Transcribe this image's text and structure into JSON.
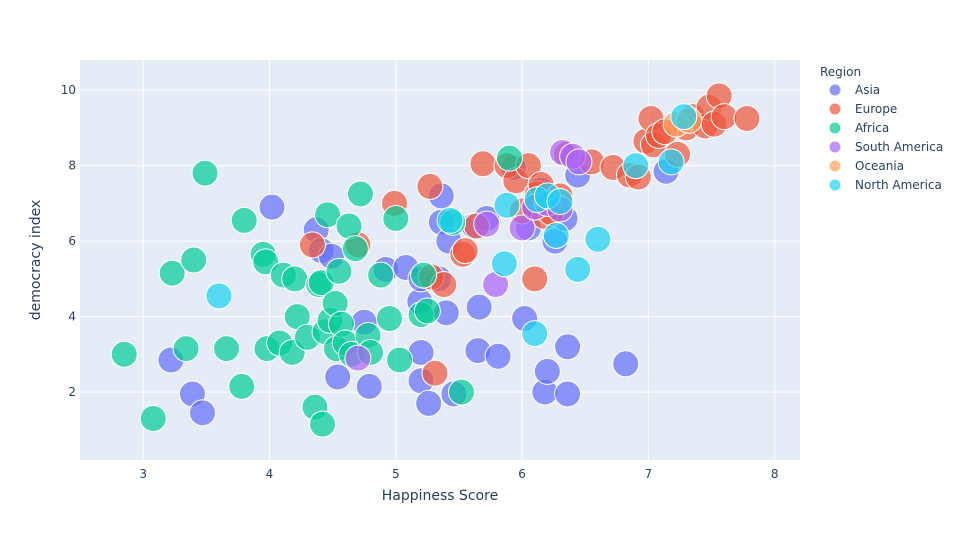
{
  "chart_data": {
    "type": "scatter",
    "title": "",
    "xlabel": "Happiness Score",
    "ylabel": "democracy index",
    "xlim": [
      2.5,
      8.2
    ],
    "ylim": [
      0.2,
      10.8
    ],
    "xticks": [
      3,
      4,
      5,
      6,
      7,
      8
    ],
    "yticks": [
      2,
      4,
      6,
      8,
      10
    ],
    "grid": true,
    "legend": {
      "title": "Region",
      "placement": "right"
    },
    "series": [
      {
        "name": "Asia",
        "color": "#636efa",
        "points": [
          [
            3.22,
            2.85
          ],
          [
            3.39,
            1.95
          ],
          [
            3.47,
            1.45
          ],
          [
            4.02,
            6.9
          ],
          [
            4.37,
            6.3
          ],
          [
            4.41,
            5.75
          ],
          [
            4.49,
            5.6
          ],
          [
            4.54,
            2.4
          ],
          [
            4.79,
            2.15
          ],
          [
            4.92,
            5.25
          ],
          [
            5.08,
            5.3
          ],
          [
            5.19,
            4.4
          ],
          [
            5.2,
            3.05
          ],
          [
            5.2,
            2.3
          ],
          [
            5.26,
            1.7
          ],
          [
            5.34,
            5.0
          ],
          [
            5.36,
            6.5
          ],
          [
            5.36,
            7.2
          ],
          [
            5.4,
            4.1
          ],
          [
            5.42,
            6.0
          ],
          [
            5.46,
            1.95
          ],
          [
            5.62,
            6.4
          ],
          [
            5.65,
            3.1
          ],
          [
            5.66,
            4.25
          ],
          [
            5.72,
            6.6
          ],
          [
            5.81,
            2.95
          ],
          [
            5.93,
            7.95
          ],
          [
            6.02,
            3.95
          ],
          [
            6.05,
            6.35
          ],
          [
            6.1,
            6.9
          ],
          [
            6.15,
            7.35
          ],
          [
            6.18,
            2.0
          ],
          [
            6.2,
            2.55
          ],
          [
            6.26,
            6.0
          ],
          [
            6.34,
            6.6
          ],
          [
            6.36,
            3.2
          ],
          [
            6.36,
            1.95
          ],
          [
            6.44,
            7.75
          ],
          [
            6.82,
            2.75
          ],
          [
            7.14,
            7.85
          ],
          [
            5.2,
            5.0
          ],
          [
            4.75,
            3.85
          ]
        ]
      },
      {
        "name": "Europe",
        "color": "#ef553b",
        "points": [
          [
            4.34,
            5.9
          ],
          [
            4.7,
            5.9
          ],
          [
            4.99,
            7.0
          ],
          [
            5.27,
            7.45
          ],
          [
            5.28,
            5.05
          ],
          [
            5.31,
            2.5
          ],
          [
            5.38,
            4.85
          ],
          [
            5.53,
            5.65
          ],
          [
            5.64,
            6.4
          ],
          [
            5.69,
            8.05
          ],
          [
            5.88,
            8.0
          ],
          [
            5.95,
            7.6
          ],
          [
            6.0,
            6.8
          ],
          [
            6.05,
            8.0
          ],
          [
            6.1,
            5.0
          ],
          [
            6.12,
            7.25
          ],
          [
            6.15,
            7.5
          ],
          [
            6.18,
            6.65
          ],
          [
            6.3,
            7.2
          ],
          [
            6.35,
            8.3
          ],
          [
            6.55,
            8.1
          ],
          [
            6.72,
            7.95
          ],
          [
            6.85,
            7.75
          ],
          [
            6.92,
            7.7
          ],
          [
            6.98,
            8.65
          ],
          [
            7.02,
            9.25
          ],
          [
            7.04,
            8.55
          ],
          [
            7.08,
            8.8
          ],
          [
            7.23,
            8.3
          ],
          [
            7.3,
            9.0
          ],
          [
            7.35,
            9.3
          ],
          [
            7.45,
            9.05
          ],
          [
            7.48,
            9.55
          ],
          [
            7.52,
            9.1
          ],
          [
            7.56,
            9.85
          ],
          [
            7.6,
            9.3
          ],
          [
            7.78,
            9.25
          ],
          [
            7.13,
            8.9
          ],
          [
            5.55,
            5.75
          ],
          [
            6.23,
            6.75
          ]
        ]
      },
      {
        "name": "Africa",
        "color": "#00cc96",
        "points": [
          [
            2.85,
            3.0
          ],
          [
            3.08,
            1.3
          ],
          [
            3.23,
            5.15
          ],
          [
            3.34,
            3.15
          ],
          [
            3.4,
            5.5
          ],
          [
            3.49,
            7.8
          ],
          [
            3.66,
            3.15
          ],
          [
            3.78,
            2.15
          ],
          [
            3.8,
            6.55
          ],
          [
            3.95,
            5.65
          ],
          [
            3.97,
            5.45
          ],
          [
            3.98,
            3.15
          ],
          [
            4.08,
            3.3
          ],
          [
            4.11,
            5.1
          ],
          [
            4.18,
            3.05
          ],
          [
            4.2,
            5.0
          ],
          [
            4.22,
            4.0
          ],
          [
            4.3,
            3.45
          ],
          [
            4.36,
            1.6
          ],
          [
            4.39,
            4.85
          ],
          [
            4.41,
            4.9
          ],
          [
            4.42,
            1.15
          ],
          [
            4.44,
            3.6
          ],
          [
            4.46,
            6.7
          ],
          [
            4.48,
            3.9
          ],
          [
            4.52,
            4.35
          ],
          [
            4.53,
            3.15
          ],
          [
            4.55,
            5.2
          ],
          [
            4.57,
            3.8
          ],
          [
            4.6,
            3.3
          ],
          [
            4.63,
            6.4
          ],
          [
            4.65,
            3.0
          ],
          [
            4.68,
            5.8
          ],
          [
            4.72,
            7.25
          ],
          [
            4.78,
            3.5
          ],
          [
            4.8,
            3.05
          ],
          [
            4.88,
            5.1
          ],
          [
            4.95,
            3.95
          ],
          [
            5.0,
            6.6
          ],
          [
            5.03,
            2.85
          ],
          [
            5.2,
            4.05
          ],
          [
            5.22,
            5.1
          ],
          [
            5.25,
            4.15
          ],
          [
            5.45,
            6.5
          ],
          [
            5.52,
            2.0
          ],
          [
            5.9,
            8.2
          ]
        ]
      },
      {
        "name": "South America",
        "color": "#ab63fa",
        "points": [
          [
            4.7,
            2.9
          ],
          [
            5.72,
            6.45
          ],
          [
            5.79,
            4.85
          ],
          [
            6.0,
            6.35
          ],
          [
            6.1,
            6.9
          ],
          [
            6.2,
            7.0
          ],
          [
            6.3,
            6.85
          ],
          [
            6.32,
            8.35
          ],
          [
            6.4,
            8.25
          ],
          [
            6.45,
            8.1
          ]
        ]
      },
      {
        "name": "Oceania",
        "color": "#ffa15a",
        "points": [
          [
            7.22,
            9.1
          ],
          [
            7.32,
            9.2
          ]
        ]
      },
      {
        "name": "North America",
        "color": "#19d3f3",
        "points": [
          [
            3.6,
            4.55
          ],
          [
            5.43,
            6.55
          ],
          [
            5.86,
            5.4
          ],
          [
            5.88,
            6.95
          ],
          [
            6.1,
            3.55
          ],
          [
            6.12,
            7.1
          ],
          [
            6.2,
            7.2
          ],
          [
            6.27,
            6.15
          ],
          [
            6.3,
            7.05
          ],
          [
            6.44,
            5.25
          ],
          [
            6.6,
            6.05
          ],
          [
            6.9,
            8.0
          ],
          [
            7.18,
            8.1
          ],
          [
            7.28,
            9.3
          ]
        ]
      }
    ]
  }
}
